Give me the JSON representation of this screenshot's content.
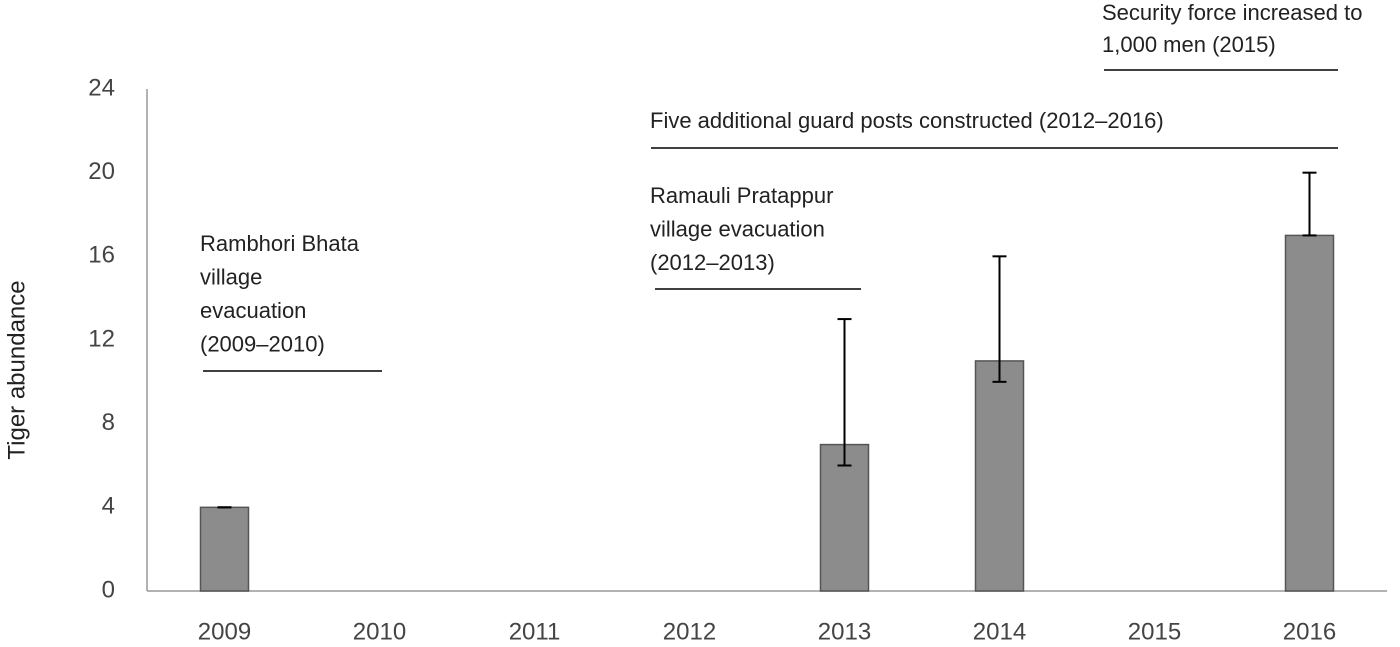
{
  "chart_data": {
    "type": "bar",
    "y_label": "Tiger abundance",
    "categories": [
      "2009",
      "2010",
      "2011",
      "2012",
      "2013",
      "2014",
      "2015",
      "2016"
    ],
    "values": [
      4,
      null,
      null,
      null,
      7,
      11,
      null,
      17
    ],
    "lower": [
      4,
      null,
      null,
      null,
      6,
      10,
      null,
      17
    ],
    "upper": [
      4,
      null,
      null,
      null,
      13,
      16,
      null,
      20
    ],
    "color": "#8c8c8c",
    "ylim": [
      0,
      24
    ],
    "yticks": [
      0,
      4,
      8,
      12,
      16,
      20,
      24
    ],
    "grid": false,
    "annotations": [
      {
        "lines": [
          "Rambhori Bhata",
          "village",
          "evacuation",
          "(2009–2010)"
        ]
      },
      {
        "lines": [
          "Ramauli Pratappur",
          "village evacuation",
          "(2012–2013)"
        ]
      },
      {
        "lines": [
          "Five additional guard posts constructed (2012–2016)"
        ]
      },
      {
        "lines": [
          "Security force increased to",
          "1,000 men  (2015)"
        ]
      }
    ]
  }
}
